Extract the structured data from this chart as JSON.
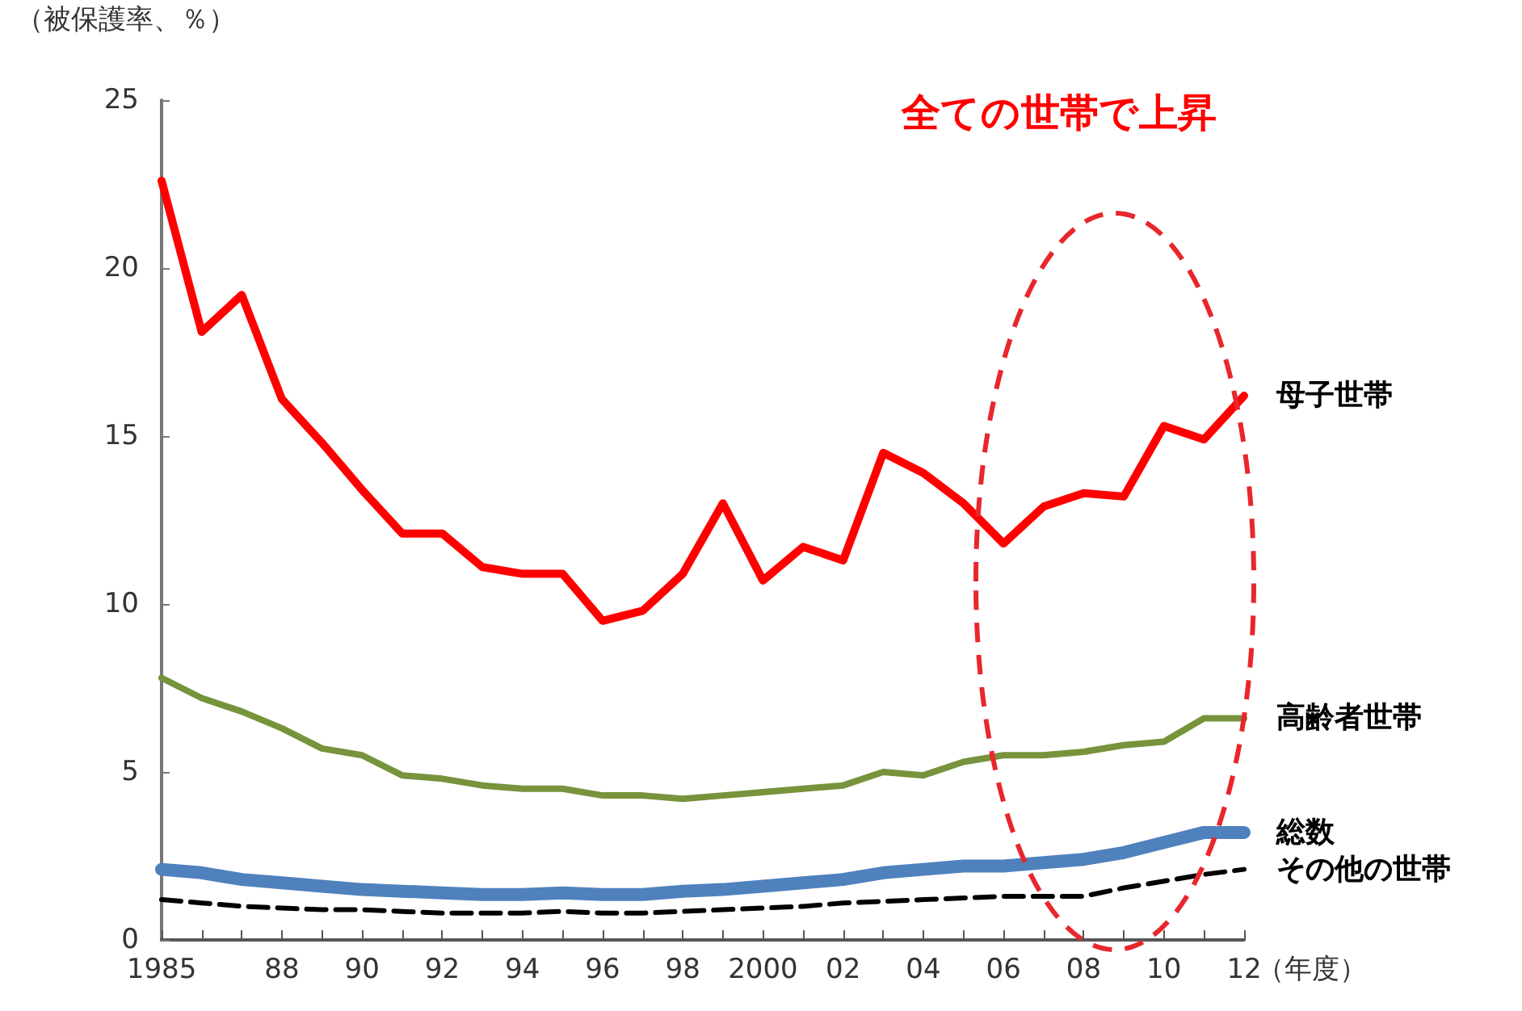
{
  "chart_data": {
    "type": "line",
    "ylabel": "（被保護率、％）",
    "xlabel": "（年度）",
    "annotations": [
      "全ての世帯で上昇"
    ],
    "categories": [
      "1985",
      null,
      null,
      "88",
      null,
      "90",
      null,
      "92",
      null,
      "94",
      null,
      "96",
      null,
      "98",
      null,
      "2000",
      null,
      "02",
      null,
      "04",
      null,
      "06",
      null,
      "08",
      null,
      "10",
      null,
      "12"
    ],
    "ylim": [
      0,
      25
    ],
    "yticks": [
      0,
      5,
      10,
      15,
      20,
      25
    ],
    "grid": false,
    "legend": false,
    "marker": "none",
    "series": [
      {
        "name": "母子世帯",
        "color": "#ff0000",
        "line_style": "solid",
        "values": [
          22.6,
          18.1,
          19.2,
          16.1,
          14.8,
          13.4,
          12.1,
          12.1,
          11.1,
          10.9,
          10.9,
          9.5,
          9.8,
          10.9,
          13.0,
          10.7,
          11.7,
          11.3,
          14.5,
          13.9,
          13.0,
          11.8,
          12.9,
          13.3,
          13.2,
          15.3,
          14.9,
          16.2
        ]
      },
      {
        "name": "高齢者世帯",
        "color": "#77933c",
        "line_style": "solid",
        "values": [
          7.8,
          7.2,
          6.8,
          6.3,
          5.7,
          5.5,
          4.9,
          4.8,
          4.6,
          4.5,
          4.5,
          4.3,
          4.3,
          4.2,
          4.3,
          4.4,
          4.5,
          4.6,
          5.0,
          4.9,
          5.3,
          5.5,
          5.5,
          5.6,
          5.8,
          5.9,
          6.6,
          6.6
        ]
      },
      {
        "name": "総数",
        "color": "#4f81bd",
        "line_style": "solid",
        "values": [
          2.1,
          2.0,
          1.8,
          1.7,
          1.6,
          1.5,
          1.45,
          1.4,
          1.35,
          1.35,
          1.4,
          1.35,
          1.35,
          1.45,
          1.5,
          1.6,
          1.7,
          1.8,
          2.0,
          2.1,
          2.2,
          2.2,
          2.3,
          2.4,
          2.6,
          2.9,
          3.2,
          3.2
        ]
      },
      {
        "name": "その他の世帯",
        "color": "#000000",
        "line_style": "dashed",
        "values": [
          1.2,
          1.1,
          1.0,
          0.95,
          0.9,
          0.9,
          0.85,
          0.8,
          0.8,
          0.8,
          0.85,
          0.8,
          0.8,
          0.85,
          0.9,
          0.95,
          1.0,
          1.1,
          1.15,
          1.2,
          1.25,
          1.3,
          1.3,
          1.3,
          1.55,
          1.75,
          1.95,
          2.1
        ]
      }
    ]
  }
}
